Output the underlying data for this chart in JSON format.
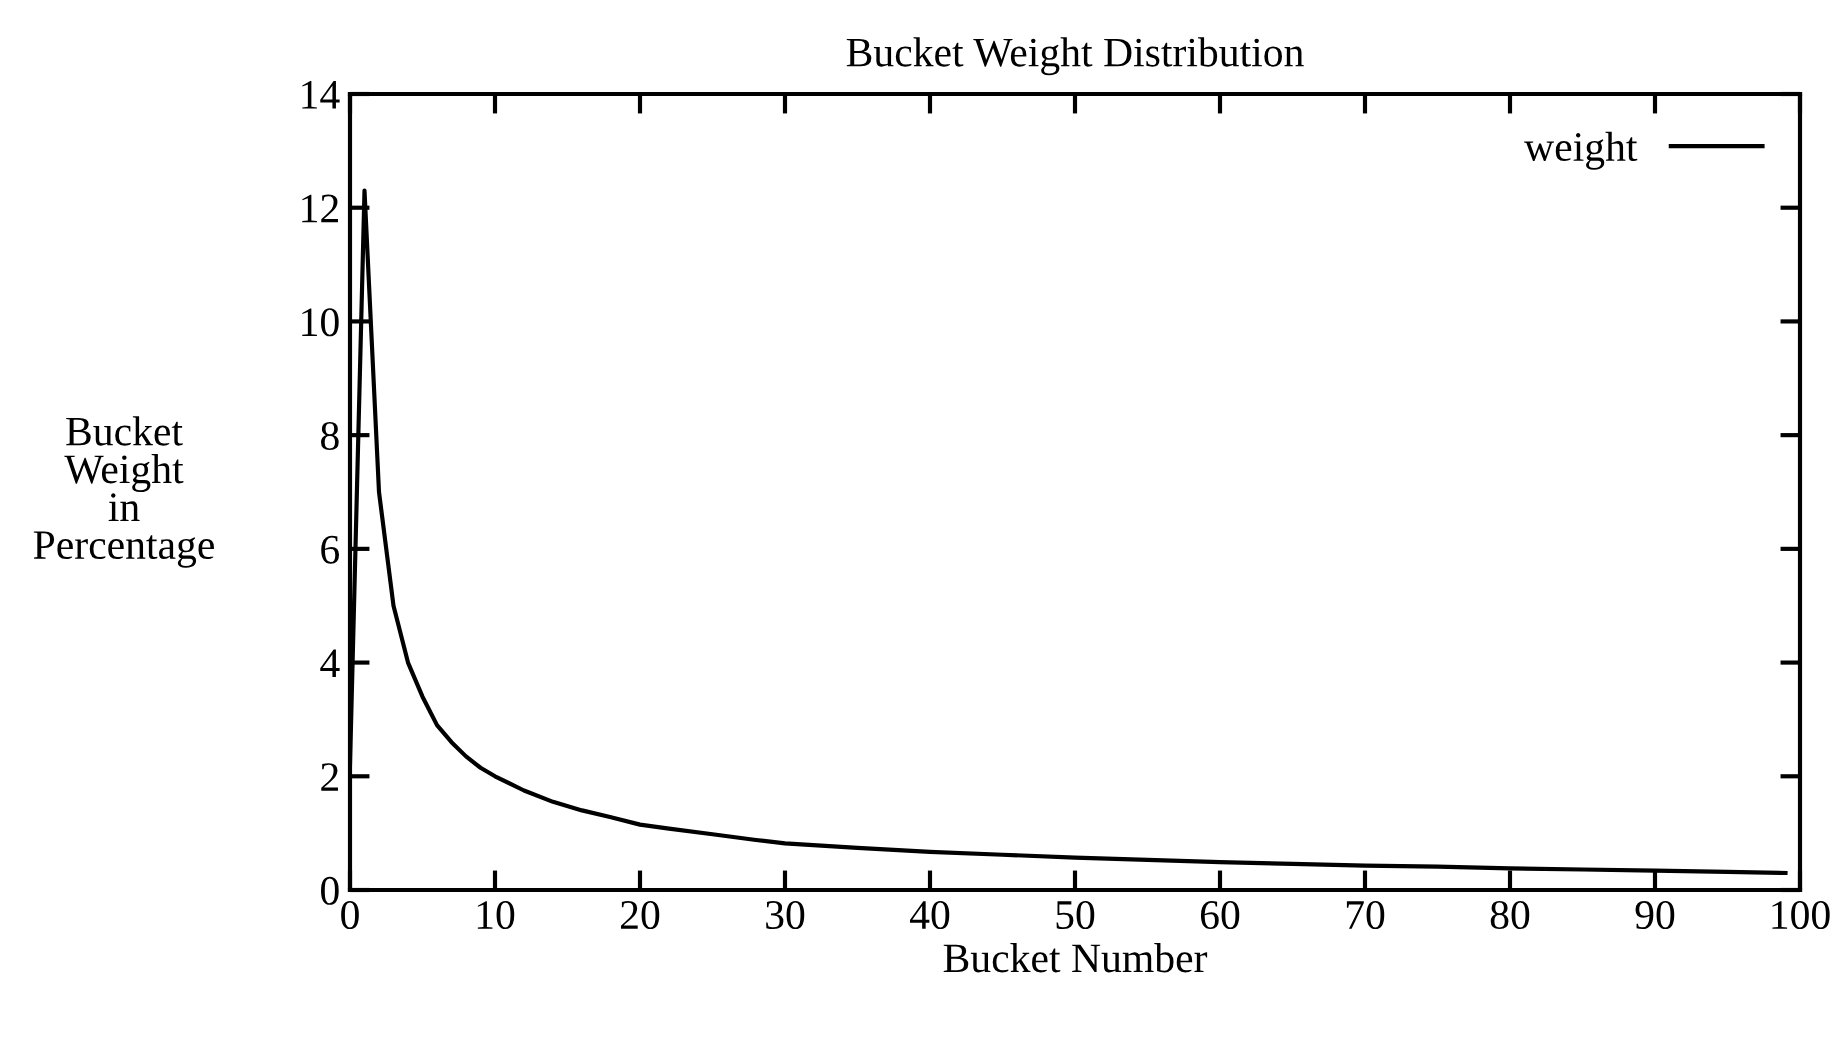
{
  "chart_data": {
    "type": "line",
    "title": "Bucket Weight Distribution",
    "xlabel": "Bucket Number",
    "ylabel": "Bucket\nWeight\nin\nPercentage",
    "x": [
      0,
      1,
      2,
      3,
      4,
      5,
      6,
      7,
      8,
      9,
      10,
      12,
      14,
      16,
      18,
      20,
      22,
      25,
      28,
      30,
      35,
      40,
      45,
      50,
      55,
      60,
      65,
      70,
      75,
      80,
      85,
      90,
      95,
      99
    ],
    "series": [
      {
        "name": "weight",
        "color": "#000000",
        "values": [
          2.2,
          12.3,
          7.0,
          5.0,
          4.0,
          3.4,
          2.9,
          2.6,
          2.35,
          2.15,
          2.0,
          1.75,
          1.55,
          1.4,
          1.28,
          1.15,
          1.08,
          0.98,
          0.88,
          0.82,
          0.74,
          0.67,
          0.62,
          0.57,
          0.53,
          0.49,
          0.46,
          0.43,
          0.41,
          0.38,
          0.36,
          0.34,
          0.32,
          0.3
        ]
      }
    ],
    "xlim": [
      0,
      100
    ],
    "ylim": [
      0,
      14
    ],
    "xticks": [
      0,
      10,
      20,
      30,
      40,
      50,
      60,
      70,
      80,
      90,
      100
    ],
    "yticks": [
      0,
      2,
      4,
      6,
      8,
      10,
      12,
      14
    ],
    "legend": "top right",
    "grid": false
  }
}
